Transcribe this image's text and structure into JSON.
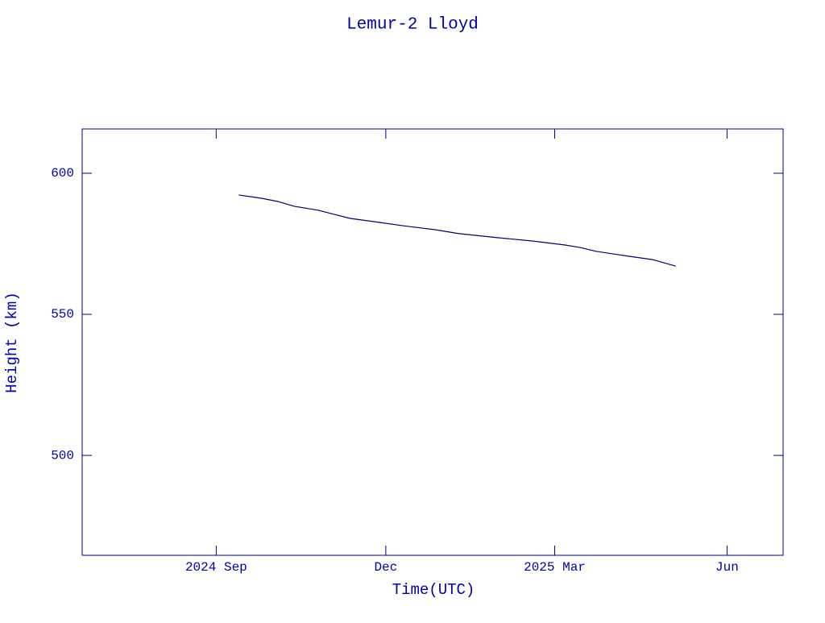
{
  "chart_data": {
    "type": "line",
    "title": "Lemur-2 Lloyd",
    "x_label": "Time(UTC)",
    "y_label": "Height (km)",
    "x": [
      2024.7,
      2024.734,
      2024.757,
      2024.781,
      2024.816,
      2024.84,
      2024.863,
      2024.905,
      2024.94,
      2024.987,
      2025.022,
      2025.081,
      2025.129,
      2025.176,
      2025.199,
      2025.223,
      2025.27,
      2025.305,
      2025.339
    ],
    "series": [
      {
        "name": "Height",
        "color": "#00006e",
        "values": [
          592.3,
          591.1,
          590.0,
          588.3,
          586.9,
          585.4,
          584.0,
          582.6,
          581.4,
          580.0,
          578.6,
          577.1,
          576.0,
          574.6,
          573.7,
          572.3,
          570.6,
          569.4,
          567.1
        ]
      }
    ],
    "xlim": [
      2024.471,
      2025.496
    ],
    "xticks": [
      {
        "value": 2024.667,
        "label": "2024 Sep"
      },
      {
        "value": 2024.915,
        "label": "Dec"
      },
      {
        "value": 2025.162,
        "label": "2025 Mar"
      },
      {
        "value": 2025.414,
        "label": "Jun"
      }
    ],
    "ylim": [
      464.6,
      615.7
    ],
    "yticks": [
      500,
      550,
      600
    ],
    "grid": false,
    "axis_color": "#000080",
    "text_color": "#0000aa"
  }
}
